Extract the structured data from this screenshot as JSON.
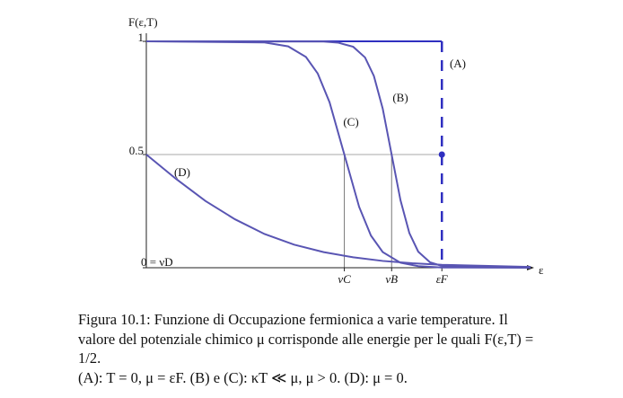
{
  "chart_data": {
    "type": "line",
    "y_label": "F(ε,T)",
    "x_label": "ε",
    "xlim": [
      0,
      1.3
    ],
    "ylim": [
      0,
      1.02
    ],
    "xticks": [
      {
        "value": 0.67,
        "label": "νC"
      },
      {
        "value": 0.83,
        "label": "νB"
      },
      {
        "value": 1,
        "label": "εF"
      }
    ],
    "yticks": [
      {
        "value": 0,
        "label": "0 = νD"
      },
      0.5,
      1
    ],
    "series": [
      {
        "name": "(A)",
        "color": "#2f2fc0",
        "x": [
          0,
          1,
          1
        ],
        "values": [
          1,
          1,
          0
        ]
      },
      {
        "name": "(B)",
        "color": "#5955b3",
        "x": [
          0,
          0.6,
          0.65,
          0.7,
          0.74,
          0.77,
          0.8,
          0.83,
          0.86,
          0.89,
          0.92,
          0.96,
          1.0,
          1.3
        ],
        "values": [
          1,
          0.999,
          0.994,
          0.976,
          0.929,
          0.847,
          0.702,
          0.5,
          0.298,
          0.153,
          0.071,
          0.024,
          0.008,
          0
        ]
      },
      {
        "name": "(C)",
        "color": "#5955b3",
        "x": [
          0,
          0.4,
          0.48,
          0.54,
          0.58,
          0.62,
          0.67,
          0.72,
          0.76,
          0.8,
          0.86,
          0.92,
          1.0,
          1.3
        ],
        "values": [
          1,
          0.995,
          0.978,
          0.931,
          0.858,
          0.731,
          0.5,
          0.269,
          0.142,
          0.069,
          0.022,
          0.007,
          0.001,
          0
        ]
      },
      {
        "name": "(D)",
        "color": "#5955b3",
        "x": [
          0,
          0.1,
          0.2,
          0.3,
          0.4,
          0.5,
          0.6,
          0.7,
          0.8,
          0.9,
          1.0,
          1.3
        ],
        "values": [
          0.5,
          0.393,
          0.295,
          0.214,
          0.149,
          0.102,
          0.069,
          0.046,
          0.03,
          0.02,
          0.013,
          0.0035
        ]
      }
    ],
    "marker": {
      "x": 1,
      "y": 0.5,
      "color": "#2f2fc0"
    }
  },
  "caption": {
    "lines": [
      "Figura 10.1: Funzione di Occupazione fermionica a varie temperature. Il",
      "valore del potenziale chimico μ corrisponde alle energie per le quali F(ε,T) =",
      "1/2.",
      "(A): T = 0, μ = εF. (B) e (C): κT ≪ μ, μ > 0. (D): μ = 0."
    ]
  }
}
